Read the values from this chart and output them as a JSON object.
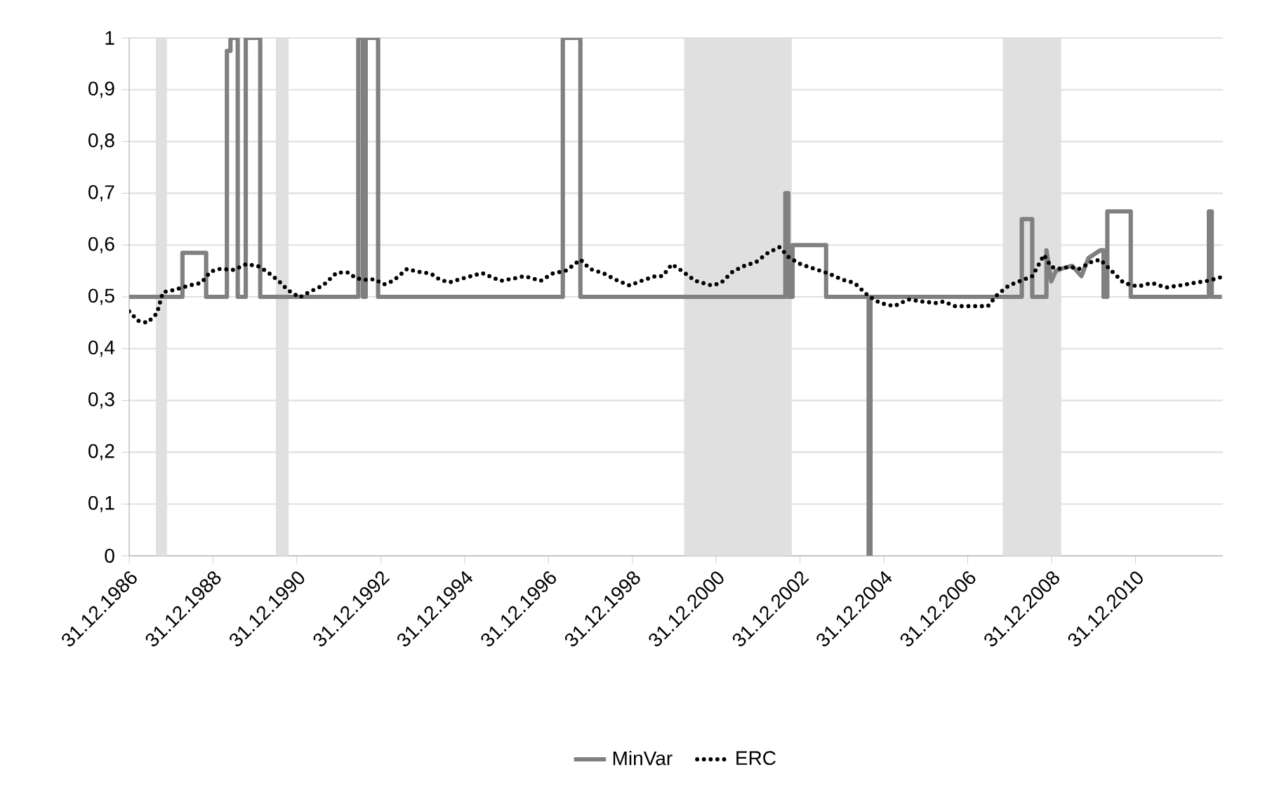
{
  "chart_data": {
    "type": "line",
    "x": [
      "1986-12-31",
      "1988-04-08",
      "1988-04-08",
      "1988-11-01",
      "1988-11-01",
      "1989-05-01",
      "1989-05-01",
      "1989-06-01",
      "1989-06-01",
      "1989-08-03",
      "1989-08-03",
      "1989-10-12",
      "1989-10-12",
      "1990-02-15",
      "1990-02-15",
      "1992-06-18",
      "1992-06-18",
      "1992-07-28",
      "1992-07-28",
      "1992-08-22",
      "1992-08-22",
      "1992-12-08",
      "1992-12-08",
      "1997-05-05",
      "1997-05-05",
      "1997-10-05",
      "1997-10-05",
      "2002-08-25",
      "2002-08-25",
      "2002-09-20",
      "2002-09-20",
      "2002-10-27",
      "2002-10-27",
      "2003-08-15",
      "2003-08-15",
      "2004-08-20",
      "2004-08-20",
      "2004-09-05",
      "2004-09-05",
      "2008-04-15",
      "2008-04-15",
      "2008-07-15",
      "2008-07-15",
      "2008-11-16",
      "2008-11-16",
      "2008-12-28",
      "2009-02-06",
      "2009-04-07",
      "2009-06-28",
      "2009-09-17",
      "2009-11-17",
      "2010-02-28",
      "2010-03-28",
      "2010-03-28",
      "2010-04-30",
      "2010-04-30",
      "2010-11-20",
      "2010-11-20",
      "2012-10-01",
      "2012-10-01",
      "2012-10-26",
      "2012-10-26",
      "2013-01-22"
    ],
    "series": [
      {
        "name": "MinVar",
        "color": "#808080",
        "line_style": "solid",
        "values": [
          0.5,
          0.5,
          0.585,
          0.585,
          0.5,
          0.5,
          0.975,
          0.975,
          1,
          1,
          0.5,
          0.5,
          1,
          1,
          0.5,
          0.5,
          1,
          1,
          0.5,
          0.5,
          1,
          1,
          0.5,
          0.5,
          1,
          1,
          0.5,
          0.5,
          0.7,
          0.7,
          0.5,
          0.5,
          0.6,
          0.6,
          0.5,
          0.5,
          0,
          0,
          0.5,
          0.5,
          0.65,
          0.65,
          0.5,
          0.5,
          0.59,
          0.53,
          0.55,
          0.555,
          0.56,
          0.54,
          0.575,
          0.59,
          0.59,
          0.5,
          0.5,
          0.665,
          0.665,
          0.5,
          0.5,
          0.665,
          0.665,
          0.5,
          0.5
        ]
      },
      {
        "name": "ERC",
        "color": "#000000",
        "line_style": "dotted",
        "x": [
          "1986-12-31",
          "1987-03-18",
          "1987-06-08",
          "1987-08-29",
          "1987-10-21",
          "1988-01-18",
          "1988-04-08",
          "1988-06-09",
          "1988-09-19",
          "1988-12-10",
          "1989-03-02",
          "1989-07-02",
          "1989-10-12",
          "1990-01-22",
          "1990-04-13",
          "1990-07-24",
          "1990-10-14",
          "1991-01-24",
          "1991-04-15",
          "1991-08-15",
          "1991-12-15",
          "1992-03-26",
          "1992-05-27",
          "1992-08-17",
          "1992-11-07",
          "1993-01-27",
          "1993-04-18",
          "1993-08-18",
          "1993-11-08",
          "1994-03-11",
          "1994-05-31",
          "1994-08-21",
          "1994-12-21",
          "1995-06-02",
          "1995-08-23",
          "1995-11-12",
          "1996-03-14",
          "1996-06-02",
          "1996-08-23",
          "1996-10-24",
          "1997-02-04",
          "1997-06-06",
          "1997-10-06",
          "1997-12-27",
          "1998-04-28",
          "1998-08-28",
          "1998-12-08",
          "1999-03-21",
          "1999-07-21",
          "1999-09-21",
          "1999-12-10",
          "2000-03-01",
          "2000-07-01",
          "2000-11-22",
          "2001-02-11",
          "2001-05-25",
          "2001-09-03",
          "2001-12-13",
          "2002-03-26",
          "2002-07-06",
          "2002-09-26",
          "2003-01-05",
          "2003-05-07",
          "2003-09-06",
          "2004-01-07",
          "2004-04-17",
          "2004-08-17",
          "2004-11-29",
          "2005-03-31",
          "2005-07-31",
          "2005-11-30",
          "2006-04-01",
          "2006-06-03",
          "2006-09-12",
          "2007-01-12",
          "2007-06-24",
          "2007-09-14",
          "2007-12-24",
          "2008-04-05",
          "2008-07-16",
          "2008-10-26",
          "2008-12-26",
          "2009-02-25",
          "2009-06-08",
          "2009-08-27",
          "2009-12-08",
          "2010-02-27",
          "2010-05-20",
          "2010-09-19",
          "2011-01-20",
          "2011-05-22",
          "2011-09-21",
          "2012-01-21",
          "2012-05-23",
          "2012-09-23",
          "2013-01-15"
        ],
        "values": [
          0.472,
          0.454,
          0.45,
          0.468,
          0.509,
          0.513,
          0.518,
          0.522,
          0.527,
          0.549,
          0.554,
          0.552,
          0.563,
          0.56,
          0.549,
          0.531,
          0.513,
          0.499,
          0.509,
          0.522,
          0.547,
          0.547,
          0.536,
          0.533,
          0.534,
          0.524,
          0.531,
          0.554,
          0.549,
          0.545,
          0.533,
          0.528,
          0.536,
          0.546,
          0.538,
          0.531,
          0.536,
          0.54,
          0.535,
          0.531,
          0.545,
          0.551,
          0.572,
          0.554,
          0.545,
          0.531,
          0.522,
          0.531,
          0.54,
          0.54,
          0.563,
          0.551,
          0.531,
          0.522,
          0.527,
          0.549,
          0.56,
          0.567,
          0.585,
          0.596,
          0.576,
          0.563,
          0.554,
          0.545,
          0.533,
          0.527,
          0.502,
          0.488,
          0.482,
          0.495,
          0.491,
          0.488,
          0.491,
          0.482,
          0.482,
          0.482,
          0.504,
          0.522,
          0.531,
          0.54,
          0.581,
          0.558,
          0.554,
          0.558,
          0.554,
          0.567,
          0.572,
          0.554,
          0.527,
          0.52,
          0.527,
          0.518,
          0.522,
          0.527,
          0.531,
          0.538
        ]
      }
    ],
    "xlim": [
      "1986-12-31",
      "2013-01-31"
    ],
    "xticks": [
      {
        "value": "1986-12-31",
        "label": "31.12.1986"
      },
      {
        "value": "1988-12-31",
        "label": "31.12.1988"
      },
      {
        "value": "1990-12-31",
        "label": "31.12.1990"
      },
      {
        "value": "1992-12-31",
        "label": "31.12.1992"
      },
      {
        "value": "1994-12-31",
        "label": "31.12.1994"
      },
      {
        "value": "1996-12-31",
        "label": "31.12.1996"
      },
      {
        "value": "1998-12-31",
        "label": "31.12.1998"
      },
      {
        "value": "2000-12-31",
        "label": "31.12.2000"
      },
      {
        "value": "2002-12-31",
        "label": "31.12.2002"
      },
      {
        "value": "2004-12-31",
        "label": "31.12.2004"
      },
      {
        "value": "2006-12-31",
        "label": "31.12.2006"
      },
      {
        "value": "2008-12-31",
        "label": "31.12.2008"
      },
      {
        "value": "2010-12-31",
        "label": "31.12.2010"
      }
    ],
    "ylim": [
      0,
      1
    ],
    "yticks": [
      0,
      {
        "value": 0.1,
        "label": "0,1"
      },
      {
        "value": 0.2,
        "label": "0,2"
      },
      {
        "value": 0.3,
        "label": "0,3"
      },
      {
        "value": 0.4,
        "label": "0,4"
      },
      {
        "value": 0.5,
        "label": "0,5"
      },
      {
        "value": 0.6,
        "label": "0,6"
      },
      {
        "value": 0.7,
        "label": "0,7"
      },
      {
        "value": 0.8,
        "label": "0,8"
      },
      {
        "value": 0.9,
        "label": "0,9"
      },
      1
    ],
    "bands": [
      {
        "axis": "x",
        "from": "1987-08-20",
        "to": "1987-11-25",
        "color": "#e0e0e0"
      },
      {
        "axis": "x",
        "from": "1990-07-01",
        "to": "1990-10-20",
        "color": "#e0e0e0"
      },
      {
        "axis": "x",
        "from": "2000-03-25",
        "to": "2002-10-20",
        "color": "#e0e0e0"
      },
      {
        "axis": "x",
        "from": "2007-11-01",
        "to": "2009-03-25",
        "color": "#e0e0e0"
      }
    ],
    "grid": "y",
    "legend": "bottom"
  }
}
